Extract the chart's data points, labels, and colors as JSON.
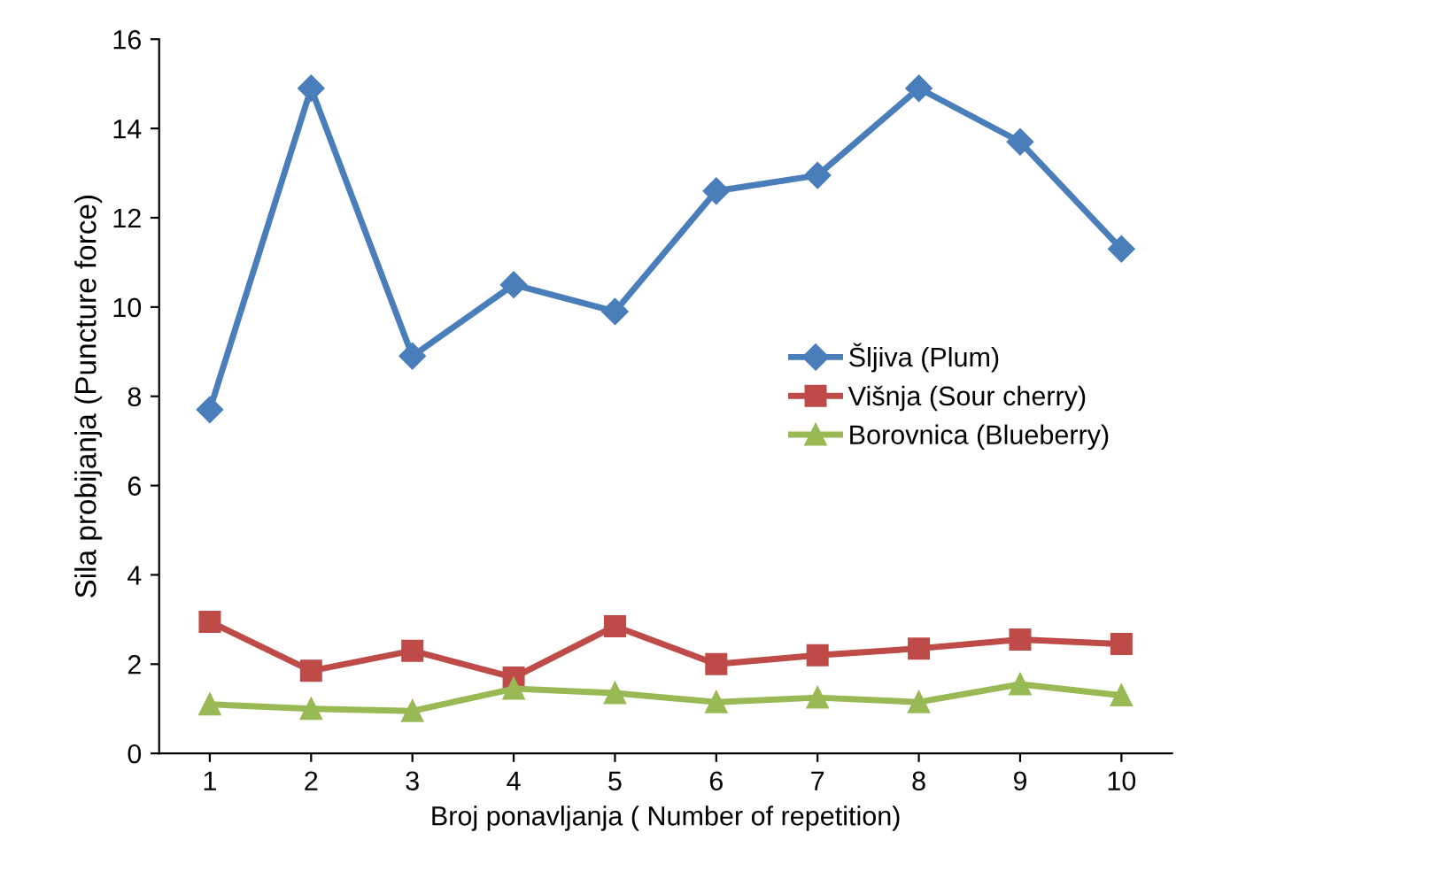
{
  "chart_data": {
    "type": "line",
    "xlabel": "Broj ponavljanja ( Number of repetition)",
    "ylabel": "Sila probijanja (Puncture force)",
    "categories": [
      "1",
      "2",
      "3",
      "4",
      "5",
      "6",
      "7",
      "8",
      "9",
      "10"
    ],
    "ylim": [
      0,
      16
    ],
    "yticks": [
      0,
      2,
      4,
      6,
      8,
      10,
      12,
      14,
      16
    ],
    "grid": false,
    "legend": "right",
    "line_style": "solid",
    "series": [
      {
        "name": "Šljiva (Plum)",
        "color": "#4a7ebb",
        "marker": "diamond",
        "values": [
          7.7,
          14.9,
          8.9,
          10.5,
          9.9,
          12.6,
          12.95,
          14.9,
          13.7,
          11.3
        ]
      },
      {
        "name": "Višnja (Sour cherry)",
        "color": "#be4b48",
        "marker": "square",
        "values": [
          2.95,
          1.85,
          2.3,
          1.7,
          2.85,
          2.0,
          2.2,
          2.35,
          2.55,
          2.45
        ]
      },
      {
        "name": "Borovnica (Blueberry)",
        "color": "#98b954",
        "marker": "triangle",
        "values": [
          1.1,
          1.0,
          0.95,
          1.45,
          1.35,
          1.15,
          1.25,
          1.15,
          1.55,
          1.3
        ]
      }
    ]
  }
}
